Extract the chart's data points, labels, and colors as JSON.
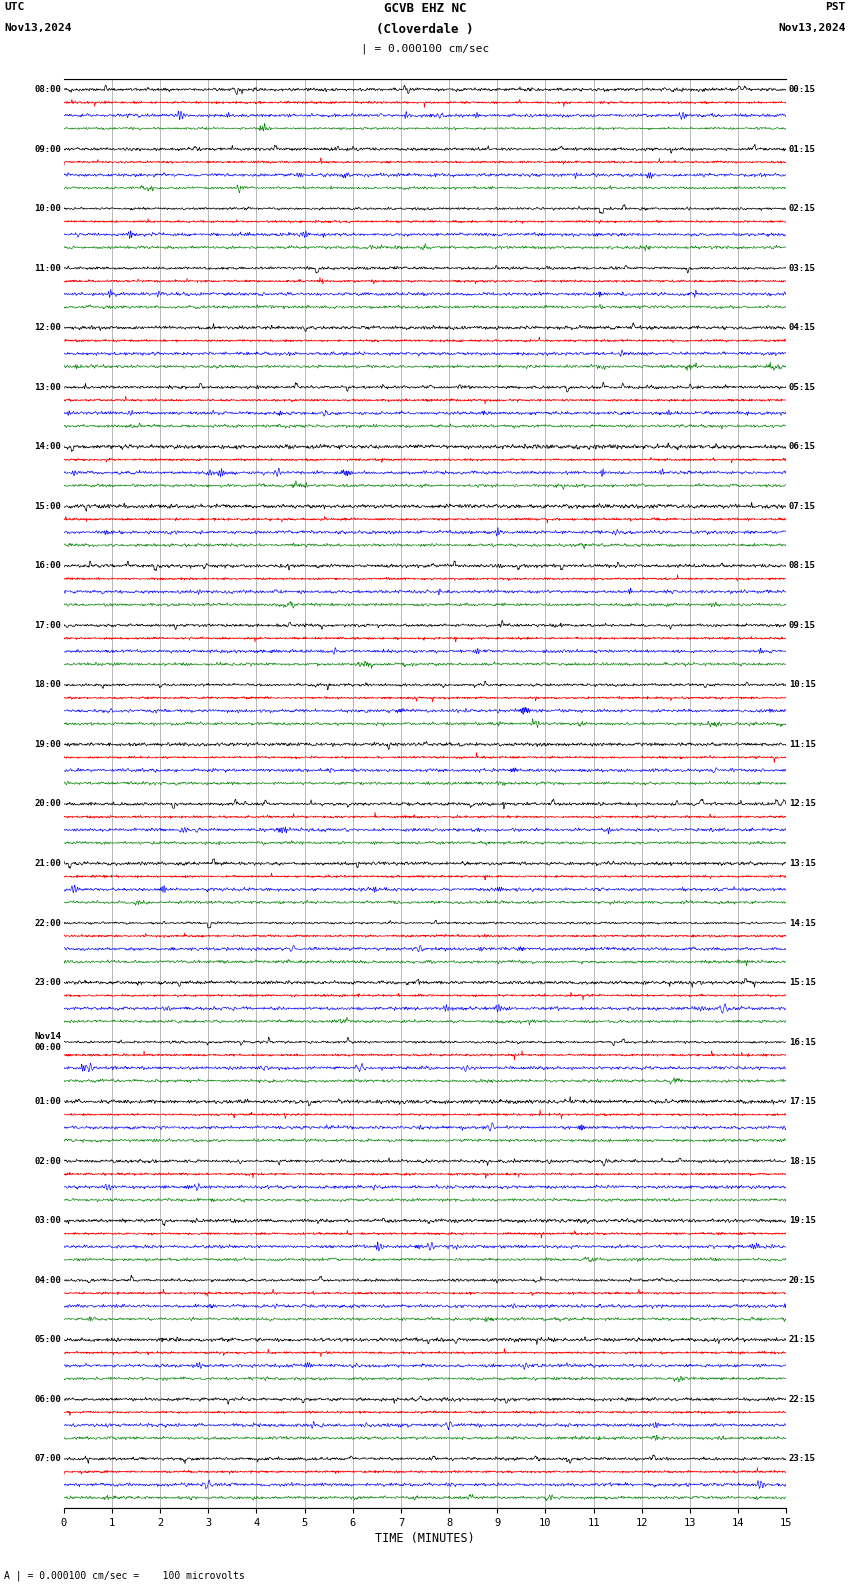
{
  "title_line1": "GCVB EHZ NC",
  "title_line2": "(Cloverdale )",
  "title_scale": "| = 0.000100 cm/sec",
  "top_left": "UTC",
  "top_left2": "Nov13,2024",
  "top_right": "PST",
  "top_right2": "Nov13,2024",
  "xlabel": "TIME (MINUTES)",
  "bottom_note": "| = 0.000100 cm/sec =    100 microvolts",
  "bottom_note_prefix": "A",
  "utc_labels": [
    "08:00",
    "09:00",
    "10:00",
    "11:00",
    "12:00",
    "13:00",
    "14:00",
    "15:00",
    "16:00",
    "17:00",
    "18:00",
    "19:00",
    "20:00",
    "21:00",
    "22:00",
    "23:00",
    "Nov14\n00:00",
    "01:00",
    "02:00",
    "03:00",
    "04:00",
    "05:00",
    "06:00",
    "07:00"
  ],
  "pst_labels": [
    "00:15",
    "01:15",
    "02:15",
    "03:15",
    "04:15",
    "05:15",
    "06:15",
    "07:15",
    "08:15",
    "09:15",
    "10:15",
    "11:15",
    "12:15",
    "13:15",
    "14:15",
    "15:15",
    "16:15",
    "17:15",
    "18:15",
    "19:15",
    "20:15",
    "21:15",
    "22:15",
    "23:15"
  ],
  "num_rows": 24,
  "traces_per_row": 4,
  "trace_colors": [
    "black",
    "red",
    "blue",
    "green"
  ],
  "x_ticks": [
    0,
    1,
    2,
    3,
    4,
    5,
    6,
    7,
    8,
    9,
    10,
    11,
    12,
    13,
    14,
    15
  ],
  "x_min": 0,
  "x_max": 15,
  "background_color": "white",
  "grid_color": "#999999",
  "fig_width": 8.5,
  "fig_height": 15.84
}
